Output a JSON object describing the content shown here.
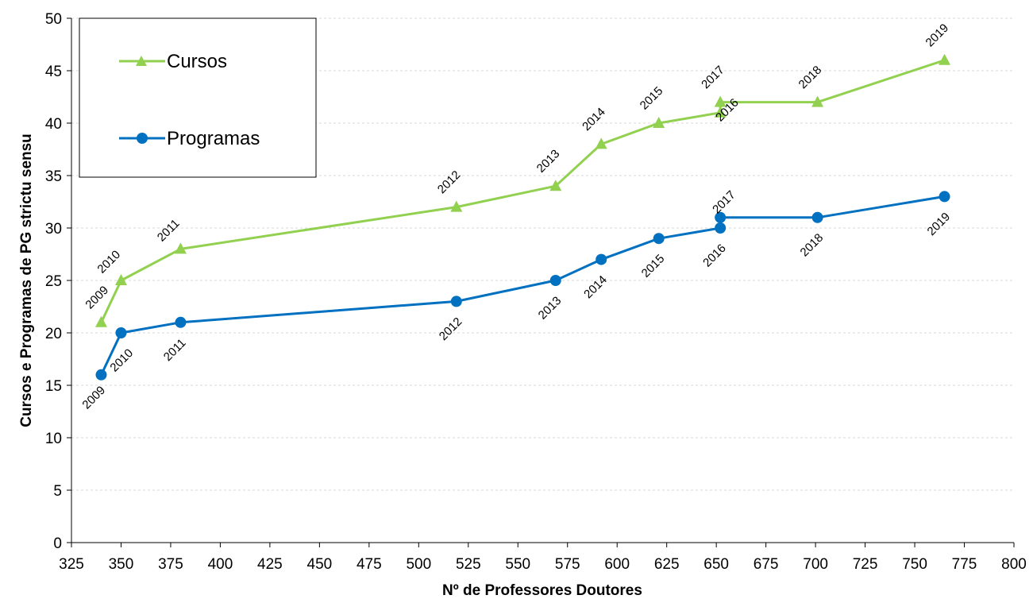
{
  "chart_data": {
    "type": "line",
    "xlabel": "Nº de Professores Doutores",
    "ylabel": "Cursos e Programas de PG strictu sensu",
    "xlim": [
      325,
      800
    ],
    "ylim": [
      0,
      50
    ],
    "x_ticks": [
      325,
      350,
      375,
      400,
      425,
      450,
      475,
      500,
      525,
      550,
      575,
      600,
      625,
      650,
      675,
      700,
      725,
      750,
      775,
      800
    ],
    "y_ticks": [
      0,
      5,
      10,
      15,
      20,
      25,
      30,
      35,
      40,
      45,
      50
    ],
    "grid": "horizontal-dashed",
    "legend": {
      "placement": "top-left",
      "entries": [
        "Cursos",
        "Programas"
      ]
    },
    "series": [
      {
        "name": "Cursos",
        "color": "#92d050",
        "marker": "triangle",
        "points": [
          {
            "x": 340,
            "y": 21,
            "label": "2009"
          },
          {
            "x": 350,
            "y": 25,
            "label": "2010"
          },
          {
            "x": 380,
            "y": 28,
            "label": "2011"
          },
          {
            "x": 519,
            "y": 32,
            "label": "2012"
          },
          {
            "x": 569,
            "y": 34,
            "label": "2013"
          },
          {
            "x": 592,
            "y": 38,
            "label": "2014"
          },
          {
            "x": 621,
            "y": 40,
            "label": "2015"
          },
          {
            "x": 652,
            "y": 41,
            "label": "2016"
          },
          {
            "x": 652,
            "y": 42,
            "label": "2017"
          },
          {
            "x": 701,
            "y": 42,
            "label": "2018"
          },
          {
            "x": 765,
            "y": 46,
            "label": "2019"
          }
        ]
      },
      {
        "name": "Programas",
        "color": "#0070c0",
        "marker": "circle",
        "points": [
          {
            "x": 340,
            "y": 16,
            "label": "2009"
          },
          {
            "x": 350,
            "y": 20,
            "label": "2010"
          },
          {
            "x": 380,
            "y": 21,
            "label": "2011"
          },
          {
            "x": 519,
            "y": 23,
            "label": "2012"
          },
          {
            "x": 569,
            "y": 25,
            "label": "2013"
          },
          {
            "x": 592,
            "y": 27,
            "label": "2014"
          },
          {
            "x": 621,
            "y": 29,
            "label": "2015"
          },
          {
            "x": 652,
            "y": 30,
            "label": "2016"
          },
          {
            "x": 652,
            "y": 31,
            "label": "2017"
          },
          {
            "x": 701,
            "y": 31,
            "label": "2018"
          },
          {
            "x": 765,
            "y": 33,
            "label": "2019"
          }
        ]
      }
    ]
  }
}
